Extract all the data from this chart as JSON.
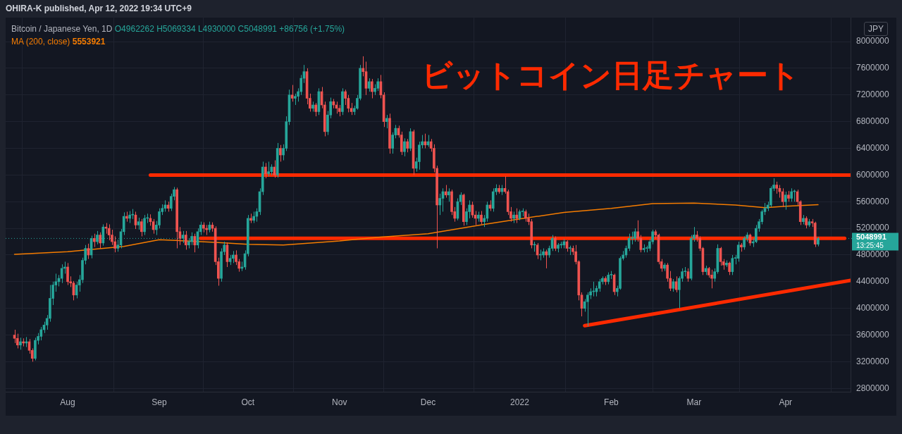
{
  "chart_data": {
    "type": "candlestick",
    "title": "Bitcoin / Japanese Yen, 1D",
    "subtitle": "O4962262 H5069334 L4930000 C5048991 +86756 (+1.75%)",
    "ylabel": "JPY",
    "annotations": [
      "OHIRA-K published, Apr 12, 2022 19:34 UTC+9",
      "ビットコイン日足チャート",
      "13:25:45",
      "5553921"
    ],
    "x": [
      "2021-07-14",
      "2021-07-15",
      "2021-07-16",
      "2021-07-17",
      "2021-07-18",
      "2021-07-19",
      "2021-07-20",
      "2021-07-21",
      "2021-07-22",
      "2021-07-23",
      "2021-07-24",
      "2021-07-25",
      "2021-07-26",
      "2021-07-27",
      "2021-07-28",
      "2021-07-29",
      "2021-07-30",
      "2021-07-31",
      "2021-08-01",
      "2021-08-02",
      "2021-08-03",
      "2021-08-04",
      "2021-08-05",
      "2021-08-06",
      "2021-08-07",
      "2021-08-08",
      "2021-08-09",
      "2021-08-10",
      "2021-08-11",
      "2021-08-12",
      "2021-08-13",
      "2021-08-14",
      "2021-08-15",
      "2021-08-16",
      "2021-08-17",
      "2021-08-18",
      "2021-08-19",
      "2021-08-20",
      "2021-08-21",
      "2021-08-22",
      "2021-08-23",
      "2021-08-24",
      "2021-08-25",
      "2021-08-26",
      "2021-08-27",
      "2021-08-28",
      "2021-08-29",
      "2021-08-30",
      "2021-08-31",
      "2021-09-01",
      "2021-09-02",
      "2021-09-03",
      "2021-09-04",
      "2021-09-05",
      "2021-09-06",
      "2021-09-07",
      "2021-09-08",
      "2021-09-09",
      "2021-09-10",
      "2021-09-11",
      "2021-09-12",
      "2021-09-13",
      "2021-09-14",
      "2021-09-15",
      "2021-09-16",
      "2021-09-17",
      "2021-09-18",
      "2021-09-19",
      "2021-09-20",
      "2021-09-21",
      "2021-09-22",
      "2021-09-23",
      "2021-09-24",
      "2021-09-25",
      "2021-09-26",
      "2021-09-27",
      "2021-09-28",
      "2021-09-29",
      "2021-09-30",
      "2021-10-01",
      "2021-10-02",
      "2021-10-03",
      "2021-10-04",
      "2021-10-05",
      "2021-10-06",
      "2021-10-07",
      "2021-10-08",
      "2021-10-09",
      "2021-10-10",
      "2021-10-11",
      "2021-10-12",
      "2021-10-13",
      "2021-10-14",
      "2021-10-15",
      "2021-10-16",
      "2021-10-17",
      "2021-10-18",
      "2021-10-19",
      "2021-10-20",
      "2021-10-21",
      "2021-10-22",
      "2021-10-23",
      "2021-10-24",
      "2021-10-25",
      "2021-10-26",
      "2021-10-27",
      "2021-10-28",
      "2021-10-29",
      "2021-10-30",
      "2021-10-31",
      "2021-11-01",
      "2021-11-02",
      "2021-11-03",
      "2021-11-04",
      "2021-11-05",
      "2021-11-06",
      "2021-11-07",
      "2021-11-08",
      "2021-11-09",
      "2021-11-10",
      "2021-11-11",
      "2021-11-12",
      "2021-11-13",
      "2021-11-14",
      "2021-11-15",
      "2021-11-16",
      "2021-11-17",
      "2021-11-18",
      "2021-11-19",
      "2021-11-20",
      "2021-11-21",
      "2021-11-22",
      "2021-11-23",
      "2021-11-24",
      "2021-11-25",
      "2021-11-26",
      "2021-11-27",
      "2021-11-28",
      "2021-11-29",
      "2021-11-30",
      "2021-12-01",
      "2021-12-02",
      "2021-12-03",
      "2021-12-04",
      "2021-12-05",
      "2021-12-06",
      "2021-12-07",
      "2021-12-08",
      "2021-12-09",
      "2021-12-10",
      "2021-12-11",
      "2021-12-12",
      "2021-12-13",
      "2021-12-14",
      "2021-12-15",
      "2021-12-16",
      "2021-12-17",
      "2021-12-18",
      "2021-12-19",
      "2021-12-20",
      "2021-12-21",
      "2021-12-22",
      "2021-12-23",
      "2021-12-24",
      "2021-12-25",
      "2021-12-26",
      "2021-12-27",
      "2021-12-28",
      "2021-12-29",
      "2021-12-30",
      "2021-12-31",
      "2022-01-01",
      "2022-01-02",
      "2022-01-03",
      "2022-01-04",
      "2022-01-05",
      "2022-01-06",
      "2022-01-07",
      "2022-01-08",
      "2022-01-09",
      "2022-01-10",
      "2022-01-11",
      "2022-01-12",
      "2022-01-13",
      "2022-01-14",
      "2022-01-15",
      "2022-01-16",
      "2022-01-17",
      "2022-01-18",
      "2022-01-19",
      "2022-01-20",
      "2022-01-21",
      "2022-01-22",
      "2022-01-23",
      "2022-01-24",
      "2022-01-25",
      "2022-01-26",
      "2022-01-27",
      "2022-01-28",
      "2022-01-29",
      "2022-01-30",
      "2022-01-31",
      "2022-02-01",
      "2022-02-02",
      "2022-02-03",
      "2022-02-04",
      "2022-02-05",
      "2022-02-06",
      "2022-02-07",
      "2022-02-08",
      "2022-02-09",
      "2022-02-10",
      "2022-02-11",
      "2022-02-12",
      "2022-02-13",
      "2022-02-14",
      "2022-02-15",
      "2022-02-16",
      "2022-02-17",
      "2022-02-18",
      "2022-02-19",
      "2022-02-20",
      "2022-02-21",
      "2022-02-22",
      "2022-02-23",
      "2022-02-24",
      "2022-02-25",
      "2022-02-26",
      "2022-02-27",
      "2022-02-28",
      "2022-03-01",
      "2022-03-02",
      "2022-03-03",
      "2022-03-04",
      "2022-03-05",
      "2022-03-06",
      "2022-03-07",
      "2022-03-08",
      "2022-03-09",
      "2022-03-10",
      "2022-03-11",
      "2022-03-12",
      "2022-03-13",
      "2022-03-14",
      "2022-03-15",
      "2022-03-16",
      "2022-03-17",
      "2022-03-18",
      "2022-03-19",
      "2022-03-20",
      "2022-03-21",
      "2022-03-22",
      "2022-03-23",
      "2022-03-24",
      "2022-03-25",
      "2022-03-26",
      "2022-03-27",
      "2022-03-28",
      "2022-03-29",
      "2022-03-30",
      "2022-03-31",
      "2022-04-01",
      "2022-04-02",
      "2022-04-03",
      "2022-04-04",
      "2022-04-05",
      "2022-04-06",
      "2022-04-07",
      "2022-04-08",
      "2022-04-09",
      "2022-04-10",
      "2022-04-11",
      "2022-04-12"
    ],
    "ohlc": [
      [
        3600000,
        3680000,
        3480000,
        3550000
      ],
      [
        3550000,
        3620000,
        3400000,
        3450000
      ],
      [
        3450000,
        3560000,
        3380000,
        3500000
      ],
      [
        3500000,
        3550000,
        3430000,
        3480000
      ],
      [
        3480000,
        3570000,
        3420000,
        3500000
      ],
      [
        3500000,
        3540000,
        3320000,
        3370000
      ],
      [
        3370000,
        3400000,
        3200000,
        3250000
      ],
      [
        3250000,
        3560000,
        3220000,
        3520000
      ],
      [
        3520000,
        3630000,
        3460000,
        3580000
      ],
      [
        3580000,
        3720000,
        3520000,
        3680000
      ],
      [
        3680000,
        3800000,
        3630000,
        3750000
      ],
      [
        3750000,
        3900000,
        3680000,
        3850000
      ],
      [
        3850000,
        4350000,
        3800000,
        4150000
      ],
      [
        4150000,
        4400000,
        4050000,
        4350000
      ],
      [
        4350000,
        4520000,
        4250000,
        4400000
      ],
      [
        4400000,
        4500000,
        4330000,
        4450000
      ],
      [
        4450000,
        4660000,
        4380000,
        4600000
      ],
      [
        4600000,
        4700000,
        4520000,
        4620000
      ],
      [
        4620000,
        4680000,
        4350000,
        4400000
      ],
      [
        4400000,
        4480000,
        4320000,
        4380000
      ],
      [
        4380000,
        4410000,
        4120000,
        4200000
      ],
      [
        4200000,
        4400000,
        4150000,
        4350000
      ],
      [
        4350000,
        4500000,
        4250000,
        4430000
      ],
      [
        4430000,
        4760000,
        4380000,
        4720000
      ],
      [
        4720000,
        4950000,
        4660000,
        4900000
      ],
      [
        4900000,
        4970000,
        4740000,
        4800000
      ],
      [
        4800000,
        5090000,
        4750000,
        5050000
      ],
      [
        5050000,
        5120000,
        4920000,
        5000000
      ],
      [
        5000000,
        5160000,
        4960000,
        5100000
      ],
      [
        5100000,
        5140000,
        4900000,
        4980000
      ],
      [
        4980000,
        5260000,
        4940000,
        5220000
      ],
      [
        5220000,
        5280000,
        5120000,
        5200000
      ],
      [
        5200000,
        5260000,
        5020000,
        5100000
      ],
      [
        5100000,
        5180000,
        4950000,
        5000000
      ],
      [
        5000000,
        5080000,
        4840000,
        4900000
      ],
      [
        4900000,
        5030000,
        4850000,
        4950000
      ],
      [
        4950000,
        5190000,
        4900000,
        5150000
      ],
      [
        5150000,
        5440000,
        5100000,
        5380000
      ],
      [
        5380000,
        5450000,
        5300000,
        5350000
      ],
      [
        5350000,
        5460000,
        5280000,
        5400000
      ],
      [
        5400000,
        5490000,
        5340000,
        5400000
      ],
      [
        5400000,
        5450000,
        5190000,
        5250000
      ],
      [
        5250000,
        5360000,
        5180000,
        5300000
      ],
      [
        5300000,
        5340000,
        5080000,
        5150000
      ],
      [
        5150000,
        5400000,
        5100000,
        5350000
      ],
      [
        5350000,
        5420000,
        5280000,
        5350000
      ],
      [
        5350000,
        5410000,
        5240000,
        5300000
      ],
      [
        5300000,
        5340000,
        5120000,
        5180000
      ],
      [
        5180000,
        5310000,
        5100000,
        5250000
      ],
      [
        5250000,
        5500000,
        5200000,
        5450000
      ],
      [
        5450000,
        5560000,
        5400000,
        5500000
      ],
      [
        5500000,
        5620000,
        5450000,
        5550000
      ],
      [
        5550000,
        5600000,
        5450000,
        5500000
      ],
      [
        5500000,
        5720000,
        5460000,
        5680000
      ],
      [
        5680000,
        5820000,
        5620000,
        5780000
      ],
      [
        5780000,
        5810000,
        4900000,
        5150000
      ],
      [
        5150000,
        5220000,
        4950000,
        5050000
      ],
      [
        5050000,
        5160000,
        4980000,
        5100000
      ],
      [
        5100000,
        5160000,
        4880000,
        4950000
      ],
      [
        4950000,
        5050000,
        4900000,
        5000000
      ],
      [
        5000000,
        5140000,
        4950000,
        5080000
      ],
      [
        5080000,
        5120000,
        4840000,
        4950000
      ],
      [
        4950000,
        5200000,
        4900000,
        5150000
      ],
      [
        5150000,
        5300000,
        5100000,
        5250000
      ],
      [
        5250000,
        5290000,
        5140000,
        5200000
      ],
      [
        5200000,
        5250000,
        5100000,
        5180000
      ],
      [
        5180000,
        5300000,
        5140000,
        5250000
      ],
      [
        5250000,
        5290000,
        5150000,
        5200000
      ],
      [
        5200000,
        5230000,
        4650000,
        4700000
      ],
      [
        4700000,
        4760000,
        4340000,
        4450000
      ],
      [
        4450000,
        4900000,
        4400000,
        4850000
      ],
      [
        4850000,
        5000000,
        4800000,
        4950000
      ],
      [
        4950000,
        4990000,
        4620000,
        4700000
      ],
      [
        4700000,
        4800000,
        4650000,
        4750000
      ],
      [
        4750000,
        4860000,
        4680000,
        4800000
      ],
      [
        4800000,
        4870000,
        4650000,
        4700000
      ],
      [
        4700000,
        4740000,
        4550000,
        4600000
      ],
      [
        4600000,
        4700000,
        4560000,
        4620000
      ],
      [
        4620000,
        4870000,
        4580000,
        4820000
      ],
      [
        4820000,
        5400000,
        4780000,
        5350000
      ],
      [
        5350000,
        5420000,
        5280000,
        5320000
      ],
      [
        5320000,
        5450000,
        5280000,
        5380000
      ],
      [
        5380000,
        5500000,
        5300000,
        5450000
      ],
      [
        5450000,
        5800000,
        5400000,
        5750000
      ],
      [
        5750000,
        6200000,
        5700000,
        6120000
      ],
      [
        6120000,
        6180000,
        5950000,
        6020000
      ],
      [
        6020000,
        6200000,
        5980000,
        6050000
      ],
      [
        6050000,
        6160000,
        6000000,
        6120000
      ],
      [
        6120000,
        6220000,
        5960000,
        6000000
      ],
      [
        6000000,
        6480000,
        5960000,
        6400000
      ],
      [
        6400000,
        6450000,
        6200000,
        6300000
      ],
      [
        6300000,
        6460000,
        6220000,
        6400000
      ],
      [
        6400000,
        6880000,
        6360000,
        6800000
      ],
      [
        6800000,
        7280000,
        6750000,
        7200000
      ],
      [
        7200000,
        7350000,
        7100000,
        7150000
      ],
      [
        7150000,
        7220000,
        7050000,
        7180000
      ],
      [
        7180000,
        7300000,
        7100000,
        7250000
      ],
      [
        7250000,
        7500000,
        7200000,
        7450000
      ],
      [
        7450000,
        7650000,
        7380000,
        7550000
      ],
      [
        7550000,
        7600000,
        7060000,
        7150000
      ],
      [
        7150000,
        7220000,
        6950000,
        7000000
      ],
      [
        7000000,
        7100000,
        6950000,
        7050000
      ],
      [
        7050000,
        7080000,
        6880000,
        6950000
      ],
      [
        6950000,
        7300000,
        6900000,
        7250000
      ],
      [
        7250000,
        7320000,
        7000000,
        7050000
      ],
      [
        7050000,
        7100000,
        6580000,
        6650000
      ],
      [
        6650000,
        6960000,
        6600000,
        6900000
      ],
      [
        6900000,
        7160000,
        6850000,
        7100000
      ],
      [
        7100000,
        7140000,
        7000000,
        7050000
      ],
      [
        7050000,
        7100000,
        6920000,
        7000000
      ],
      [
        7000000,
        7050000,
        6880000,
        6950000
      ],
      [
        6950000,
        7300000,
        6900000,
        7250000
      ],
      [
        7250000,
        7280000,
        7050000,
        7150000
      ],
      [
        7150000,
        7200000,
        6940000,
        7000000
      ],
      [
        7000000,
        7080000,
        6900000,
        6950000
      ],
      [
        6950000,
        7040000,
        6900000,
        7000000
      ],
      [
        7000000,
        7200000,
        6980000,
        7150000
      ],
      [
        7150000,
        7650000,
        7120000,
        7600000
      ],
      [
        7600000,
        7780000,
        7480000,
        7550000
      ],
      [
        7550000,
        7700000,
        7200000,
        7300000
      ],
      [
        7300000,
        7450000,
        7250000,
        7400000
      ],
      [
        7400000,
        7440000,
        7150000,
        7250000
      ],
      [
        7250000,
        7360000,
        7200000,
        7300000
      ],
      [
        7300000,
        7450000,
        7260000,
        7400000
      ],
      [
        7400000,
        7500000,
        7150000,
        7200000
      ],
      [
        7200000,
        7240000,
        6720000,
        6800000
      ],
      [
        6800000,
        6900000,
        6700000,
        6850000
      ],
      [
        6850000,
        6920000,
        6320000,
        6400000
      ],
      [
        6400000,
        6640000,
        6320000,
        6600000
      ],
      [
        6600000,
        6750000,
        6550000,
        6700000
      ],
      [
        6700000,
        6740000,
        6560000,
        6600000
      ],
      [
        6600000,
        6650000,
        6300000,
        6350000
      ],
      [
        6350000,
        6550000,
        6280000,
        6500000
      ],
      [
        6500000,
        6540000,
        6340000,
        6400000
      ],
      [
        6400000,
        6700000,
        6360000,
        6650000
      ],
      [
        6650000,
        6680000,
        6000000,
        6100000
      ],
      [
        6100000,
        6260000,
        6050000,
        6200000
      ],
      [
        6200000,
        6500000,
        6080000,
        6450000
      ],
      [
        6450000,
        6600000,
        6400000,
        6500000
      ],
      [
        6500000,
        6620000,
        6400000,
        6450000
      ],
      [
        6450000,
        6600000,
        6420000,
        6500000
      ],
      [
        6500000,
        6540000,
        6350000,
        6400000
      ],
      [
        6400000,
        6460000,
        6040000,
        6100000
      ],
      [
        6100000,
        6140000,
        4900000,
        5550000
      ],
      [
        5550000,
        5720000,
        5400000,
        5650000
      ],
      [
        5650000,
        5800000,
        5450000,
        5750000
      ],
      [
        5750000,
        5850000,
        5660000,
        5700000
      ],
      [
        5700000,
        5800000,
        5600000,
        5750000
      ],
      [
        5750000,
        5780000,
        5400000,
        5450000
      ],
      [
        5450000,
        5520000,
        5300000,
        5350000
      ],
      [
        5350000,
        5650000,
        5320000,
        5600000
      ],
      [
        5600000,
        5740000,
        5550000,
        5700000
      ],
      [
        5700000,
        5720000,
        5240000,
        5300000
      ],
      [
        5300000,
        5500000,
        5250000,
        5450000
      ],
      [
        5450000,
        5620000,
        5350000,
        5550000
      ],
      [
        5550000,
        5600000,
        5360000,
        5400000
      ],
      [
        5400000,
        5460000,
        5250000,
        5350000
      ],
      [
        5350000,
        5450000,
        5300000,
        5400000
      ],
      [
        5400000,
        5460000,
        5260000,
        5300000
      ],
      [
        5300000,
        5400000,
        5220000,
        5350000
      ],
      [
        5350000,
        5600000,
        5300000,
        5550000
      ],
      [
        5550000,
        5620000,
        5460000,
        5500000
      ],
      [
        5500000,
        5800000,
        5450000,
        5750000
      ],
      [
        5750000,
        5860000,
        5700000,
        5800000
      ],
      [
        5800000,
        5850000,
        5720000,
        5750000
      ],
      [
        5750000,
        5850000,
        5700000,
        5800000
      ],
      [
        5800000,
        5980000,
        5720000,
        5750000
      ],
      [
        5750000,
        5780000,
        5400000,
        5450000
      ],
      [
        5450000,
        5520000,
        5300000,
        5350000
      ],
      [
        5350000,
        5450000,
        5280000,
        5400000
      ],
      [
        5400000,
        5500000,
        5280000,
        5350000
      ],
      [
        5350000,
        5480000,
        5320000,
        5450000
      ],
      [
        5450000,
        5500000,
        5380000,
        5450000
      ],
      [
        5450000,
        5480000,
        5300000,
        5350000
      ],
      [
        5350000,
        5420000,
        5250000,
        5300000
      ],
      [
        5300000,
        5340000,
        4900000,
        4950000
      ],
      [
        4950000,
        5000000,
        4850000,
        4950000
      ],
      [
        4950000,
        4980000,
        4740000,
        4800000
      ],
      [
        4800000,
        4880000,
        4720000,
        4800000
      ],
      [
        4800000,
        4900000,
        4760000,
        4850000
      ],
      [
        4850000,
        4880000,
        4600000,
        4800000
      ],
      [
        4800000,
        4940000,
        4760000,
        4900000
      ],
      [
        4900000,
        5100000,
        4860000,
        5050000
      ],
      [
        5050000,
        5080000,
        4860000,
        4900000
      ],
      [
        4900000,
        4980000,
        4840000,
        4950000
      ],
      [
        4950000,
        5000000,
        4900000,
        4950000
      ],
      [
        4950000,
        5040000,
        4900000,
        5000000
      ],
      [
        5000000,
        5020000,
        4850000,
        4900000
      ],
      [
        4900000,
        4940000,
        4800000,
        4900000
      ],
      [
        4900000,
        4940000,
        4800000,
        4850000
      ],
      [
        4850000,
        4950000,
        4660000,
        4700000
      ],
      [
        4700000,
        4720000,
        4120000,
        4200000
      ],
      [
        4200000,
        4240000,
        3880000,
        4000000
      ],
      [
        4000000,
        4140000,
        3950000,
        4100000
      ],
      [
        4100000,
        4240000,
        3730000,
        4200000
      ],
      [
        4200000,
        4300000,
        4140000,
        4250000
      ],
      [
        4250000,
        4400000,
        4180000,
        4250000
      ],
      [
        4250000,
        4340000,
        4180000,
        4300000
      ],
      [
        4300000,
        4440000,
        4250000,
        4400000
      ],
      [
        4400000,
        4480000,
        4360000,
        4450000
      ],
      [
        4450000,
        4480000,
        4350000,
        4400000
      ],
      [
        4400000,
        4540000,
        4360000,
        4500000
      ],
      [
        4500000,
        4560000,
        4440000,
        4500000
      ],
      [
        4500000,
        4520000,
        4200000,
        4250000
      ],
      [
        4250000,
        4340000,
        4180000,
        4300000
      ],
      [
        4300000,
        4780000,
        4280000,
        4750000
      ],
      [
        4750000,
        4860000,
        4720000,
        4800000
      ],
      [
        4800000,
        4940000,
        4760000,
        4900000
      ],
      [
        4900000,
        5120000,
        4860000,
        5050000
      ],
      [
        5050000,
        5150000,
        4960000,
        5050000
      ],
      [
        5050000,
        5200000,
        5000000,
        5150000
      ],
      [
        5150000,
        5320000,
        5000000,
        5050000
      ],
      [
        5050000,
        5100000,
        4840000,
        4880000
      ],
      [
        4880000,
        4960000,
        4840000,
        4900000
      ],
      [
        4900000,
        4940000,
        4840000,
        4900000
      ],
      [
        4900000,
        5040000,
        4860000,
        5000000
      ],
      [
        5000000,
        5180000,
        4960000,
        5150000
      ],
      [
        5150000,
        5180000,
        5040000,
        5100000
      ],
      [
        5100000,
        5120000,
        4660000,
        4700000
      ],
      [
        4700000,
        4740000,
        4550000,
        4600000
      ],
      [
        4600000,
        4680000,
        4560000,
        4650000
      ],
      [
        4650000,
        4680000,
        4400000,
        4450000
      ],
      [
        4450000,
        4560000,
        4260000,
        4300000
      ],
      [
        4300000,
        4440000,
        4250000,
        4400000
      ],
      [
        4400000,
        4480000,
        4240000,
        4280000
      ],
      [
        4280000,
        4480000,
        4000000,
        4450000
      ],
      [
        4450000,
        4600000,
        4400000,
        4550000
      ],
      [
        4550000,
        4620000,
        4480000,
        4550000
      ],
      [
        4550000,
        4600000,
        4400000,
        4450000
      ],
      [
        4450000,
        5100000,
        4420000,
        5050000
      ],
      [
        5050000,
        5220000,
        5000000,
        5100000
      ],
      [
        5100000,
        5160000,
        5000000,
        5050000
      ],
      [
        5050000,
        5080000,
        4860000,
        4900000
      ],
      [
        4900000,
        4920000,
        4500000,
        4550000
      ],
      [
        4550000,
        4640000,
        4500000,
        4600000
      ],
      [
        4600000,
        4620000,
        4460000,
        4500000
      ],
      [
        4500000,
        4580000,
        4300000,
        4450000
      ],
      [
        4450000,
        4600000,
        4400000,
        4550000
      ],
      [
        4550000,
        4960000,
        4520000,
        4900000
      ],
      [
        4900000,
        4920000,
        4640000,
        4700000
      ],
      [
        4700000,
        4740000,
        4580000,
        4650000
      ],
      [
        4650000,
        4720000,
        4620000,
        4680000
      ],
      [
        4680000,
        4700000,
        4500000,
        4550000
      ],
      [
        4550000,
        4800000,
        4500000,
        4750000
      ],
      [
        4750000,
        4800000,
        4660000,
        4750000
      ],
      [
        4750000,
        5000000,
        4700000,
        4950000
      ],
      [
        4950000,
        4980000,
        4850000,
        4920000
      ],
      [
        4920000,
        5080000,
        4880000,
        5050000
      ],
      [
        5050000,
        5140000,
        5000000,
        5100000
      ],
      [
        5100000,
        5120000,
        4940000,
        4980000
      ],
      [
        4980000,
        5050000,
        4920000,
        5000000
      ],
      [
        5000000,
        5250000,
        4980000,
        5200000
      ],
      [
        5200000,
        5340000,
        5150000,
        5300000
      ],
      [
        5300000,
        5480000,
        5260000,
        5450000
      ],
      [
        5450000,
        5580000,
        5400000,
        5500000
      ],
      [
        5500000,
        5600000,
        5460000,
        5550000
      ],
      [
        5550000,
        5830000,
        5520000,
        5800000
      ],
      [
        5800000,
        5950000,
        5760000,
        5850000
      ],
      [
        5850000,
        5900000,
        5720000,
        5800000
      ],
      [
        5800000,
        5850000,
        5660000,
        5750000
      ],
      [
        5750000,
        5800000,
        5520000,
        5600000
      ],
      [
        5600000,
        5750000,
        5480000,
        5700000
      ],
      [
        5700000,
        5760000,
        5600000,
        5650000
      ],
      [
        5650000,
        5800000,
        5600000,
        5750000
      ],
      [
        5750000,
        5780000,
        5600000,
        5750000
      ],
      [
        5750000,
        5780000,
        5550000,
        5600000
      ],
      [
        5600000,
        5620000,
        5250000,
        5300000
      ],
      [
        5300000,
        5400000,
        5260000,
        5350000
      ],
      [
        5350000,
        5380000,
        5200000,
        5250000
      ],
      [
        5250000,
        5340000,
        5220000,
        5300000
      ],
      [
        5300000,
        5340000,
        5220000,
        5280000
      ],
      [
        5280000,
        5300000,
        4920000,
        4962262
      ],
      [
        4962262,
        5069334,
        4930000,
        5048991
      ]
    ],
    "series": [
      {
        "name": "MA (200, close)",
        "type": "line",
        "color": "#f57c00",
        "x": [
          "2021-07-14",
          "2021-08-01",
          "2021-08-20",
          "2021-09-01",
          "2021-09-20",
          "2021-10-01",
          "2021-10-13",
          "2021-11-01",
          "2021-11-15",
          "2021-12-01",
          "2021-12-20",
          "2022-01-01",
          "2022-01-16",
          "2022-02-01",
          "2022-02-15",
          "2022-03-01",
          "2022-03-15",
          "2022-03-25",
          "2022-04-01",
          "2022-04-12"
        ],
        "values": [
          4810000,
          4850000,
          4930000,
          5030000,
          4990000,
          4960000,
          4950000,
          5010000,
          5070000,
          5120000,
          5260000,
          5340000,
          5440000,
          5500000,
          5570000,
          5580000,
          5550000,
          5510000,
          5530000,
          5553921
        ]
      },
      {
        "type": "line",
        "color": "#ff2a00",
        "x": [
          "2021-08-29",
          "2022-04-23"
        ],
        "values": [
          6000000,
          6000000
        ]
      },
      {
        "type": "line",
        "color": "#ff2a00",
        "x": [
          "2021-09-15",
          "2022-04-21"
        ],
        "values": [
          5050000,
          5050000
        ]
      },
      {
        "type": "line",
        "color": "#ff2a00",
        "x": [
          "2022-01-23",
          "2022-04-23"
        ],
        "values": [
          3740000,
          4420000
        ]
      }
    ],
    "ref_lines": [
      {
        "axis": "y",
        "value": 5048991,
        "label": "5048991",
        "color": "#26a69a",
        "line_style": "dotted"
      }
    ],
    "xlim": [
      "2021-07-11",
      "2022-04-23"
    ],
    "xticks": [
      {
        "value": "2021-08-01",
        "label": "Aug"
      },
      {
        "value": "2021-09-01",
        "label": "Sep"
      },
      {
        "value": "2021-10-01",
        "label": "Oct"
      },
      {
        "value": "2021-11-01",
        "label": "Nov"
      },
      {
        "value": "2021-12-01",
        "label": "Dec"
      },
      {
        "value": "2022-01-01",
        "label": "2022"
      },
      {
        "value": "2022-02-01",
        "label": "Feb"
      },
      {
        "value": "2022-03-01",
        "label": "Mar"
      },
      {
        "value": "2022-04-01",
        "label": "Apr"
      }
    ],
    "ylim": [
      2750000,
      8360000
    ],
    "yticks": [
      2800000,
      3200000,
      3600000,
      4000000,
      4400000,
      4800000,
      5200000,
      5600000,
      6000000,
      6400000,
      6800000,
      7200000,
      7600000,
      8000000
    ],
    "grid": true
  }
}
